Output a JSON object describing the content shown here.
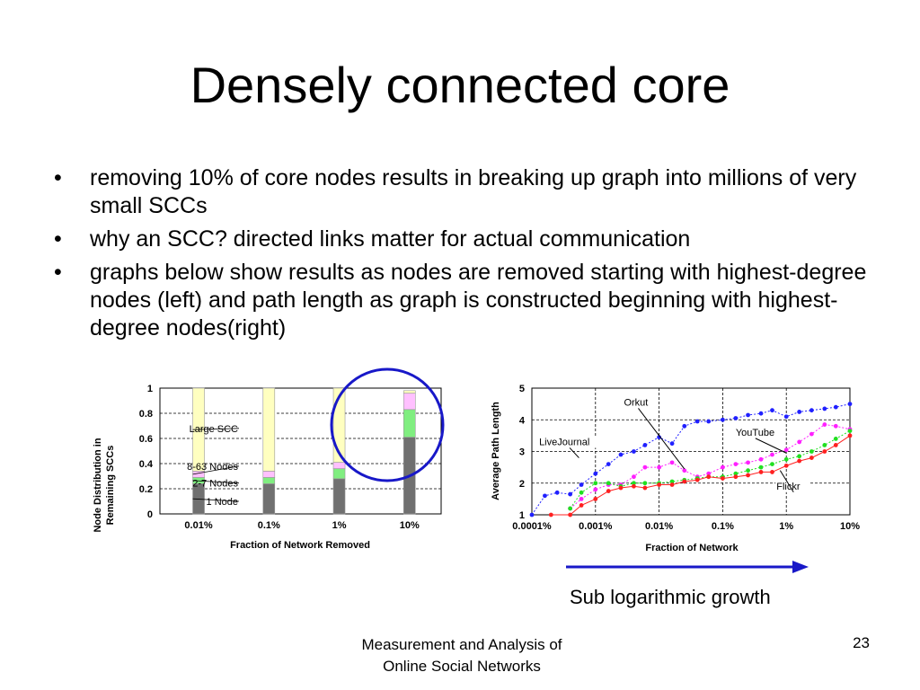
{
  "slide": {
    "title": "Densely connected core",
    "bullets": [
      "removing 10% of core nodes results in breaking up graph into millions of very small SCCs",
      "why an SCC? directed links matter for actual communication",
      "graphs below show results as nodes are removed starting with highest-degree nodes (left) and path length as graph is constructed beginning with highest-degree nodes(right)"
    ],
    "bullet_symbol": "•",
    "caption": "Sub logarithmic growth",
    "footer_line1": "Measurement and Analysis of",
    "footer_line2": "Online Social Networks",
    "page_number": "23"
  },
  "colors": {
    "large_scc": "#ffffc0",
    "mid_scc": "#ffc0ff",
    "small_scc": "#80ee80",
    "one_node": "#707070",
    "circle": "#1818c8",
    "arrow": "#1818c8",
    "flickr": "#ff2020",
    "livejournal": "#2020ff",
    "orkut": "#ff20ff",
    "youtube": "#20e020"
  },
  "chart_data": [
    {
      "type": "bar",
      "stacked": true,
      "ylabel": "Node Distribution in Remaining SCCs",
      "xlabel": "Fraction of Network Removed",
      "categories": [
        "0.01%",
        "0.1%",
        "1%",
        "10%"
      ],
      "ylim": [
        0,
        1
      ],
      "yticks": [
        "0",
        "0.2",
        "0.4",
        "0.6",
        "0.8",
        "1"
      ],
      "grid": "horizontal dashed",
      "series": [
        {
          "name": "1 Node",
          "values": [
            0.24,
            0.24,
            0.28,
            0.61
          ]
        },
        {
          "name": "2-7 Nodes",
          "values": [
            0.05,
            0.05,
            0.08,
            0.22
          ]
        },
        {
          "name": "8-63 Nodes",
          "values": [
            0.05,
            0.05,
            0.05,
            0.13
          ]
        },
        {
          "name": "Large SCC",
          "values": [
            0.66,
            0.66,
            0.59,
            0.02
          ]
        }
      ],
      "labels": [
        "Large SCC",
        "8-63 Nodes",
        "2-7 Nodes",
        "1 Node"
      ]
    },
    {
      "type": "line",
      "ylabel": "Average Path Length",
      "xlabel": "Fraction of Network",
      "xscale": "log",
      "xticks": [
        "0.0001%",
        "0.001%",
        "0.01%",
        "0.1%",
        "1%",
        "10%"
      ],
      "ylim": [
        1,
        5
      ],
      "yticks": [
        "1",
        "2",
        "3",
        "4",
        "5"
      ],
      "grid": "dashed",
      "series": [
        {
          "name": "LiveJournal",
          "x": [
            0.0001,
            0.00016,
            0.00025,
            0.0004,
            0.0006,
            0.001,
            0.0016,
            0.0025,
            0.004,
            0.006,
            0.01,
            0.016,
            0.025,
            0.04,
            0.06,
            0.1,
            0.16,
            0.25,
            0.4,
            0.6,
            1,
            1.6,
            2.5,
            4,
            6,
            10
          ],
          "y": [
            1.0,
            1.6,
            1.7,
            1.65,
            1.95,
            2.3,
            2.6,
            2.9,
            3.0,
            3.2,
            3.45,
            3.25,
            3.8,
            3.95,
            3.95,
            4.0,
            4.05,
            4.15,
            4.2,
            4.3,
            4.1,
            4.25,
            4.3,
            4.35,
            4.4,
            4.5
          ]
        },
        {
          "name": "Orkut",
          "x": [
            0.0004,
            0.0006,
            0.001,
            0.0016,
            0.0025,
            0.004,
            0.006,
            0.01,
            0.016,
            0.025,
            0.04,
            0.06,
            0.1,
            0.16,
            0.25,
            0.4,
            0.6,
            1,
            1.6,
            2.5,
            4,
            6,
            10
          ],
          "y": [
            1.2,
            1.5,
            1.8,
            1.95,
            1.95,
            2.2,
            2.5,
            2.5,
            2.65,
            2.4,
            2.2,
            2.3,
            2.5,
            2.6,
            2.65,
            2.75,
            2.9,
            3.05,
            3.3,
            3.55,
            3.85,
            3.8,
            3.7
          ]
        },
        {
          "name": "YouTube",
          "x": [
            0.0004,
            0.0006,
            0.001,
            0.0016,
            0.0025,
            0.004,
            0.006,
            0.01,
            0.016,
            0.025,
            0.04,
            0.06,
            0.1,
            0.16,
            0.25,
            0.4,
            0.6,
            1,
            1.6,
            2.5,
            4,
            6,
            10
          ],
          "y": [
            1.2,
            1.7,
            2.0,
            2.0,
            1.9,
            2.0,
            2.0,
            2.0,
            2.05,
            2.1,
            2.15,
            2.2,
            2.2,
            2.3,
            2.4,
            2.5,
            2.6,
            2.75,
            2.85,
            3.0,
            3.2,
            3.4,
            3.65
          ]
        },
        {
          "name": "Flickr",
          "x": [
            0.0002,
            0.0004,
            0.0006,
            0.001,
            0.0016,
            0.0025,
            0.004,
            0.006,
            0.01,
            0.016,
            0.025,
            0.04,
            0.06,
            0.1,
            0.16,
            0.25,
            0.4,
            0.6,
            1,
            1.6,
            2.5,
            4,
            6,
            10
          ],
          "y": [
            1.0,
            1.0,
            1.3,
            1.5,
            1.75,
            1.85,
            1.9,
            1.85,
            1.95,
            1.95,
            2.05,
            2.1,
            2.2,
            2.15,
            2.2,
            2.25,
            2.35,
            2.35,
            2.55,
            2.7,
            2.8,
            3.0,
            3.2,
            3.5
          ]
        }
      ],
      "annotations": [
        "Orkut",
        "LiveJournal",
        "YouTube",
        "Flickr"
      ]
    }
  ]
}
